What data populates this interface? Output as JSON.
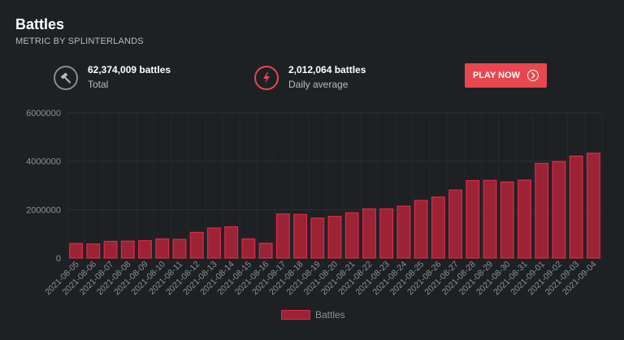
{
  "header": {
    "title": "Battles",
    "subtitle": "METRIC BY SPLINTERLANDS"
  },
  "stats": {
    "total": {
      "value": "62,374,009 battles",
      "label": "Total",
      "icon": "gavel-icon"
    },
    "daily": {
      "value": "2,012,064 battles",
      "label": "Daily average",
      "icon": "lightning-icon"
    }
  },
  "play_button": {
    "label": "PLAY NOW",
    "icon": "chevron-right-circle-icon"
  },
  "colors": {
    "background": "#1e2124",
    "bar_fill": "#9b2335",
    "bar_stroke": "#e0294a",
    "accent": "#e8474f"
  },
  "chart_data": {
    "type": "bar",
    "categories": [
      "2021-08-05",
      "2021-08-06",
      "2021-08-07",
      "2021-08-08",
      "2021-08-09",
      "2021-08-10",
      "2021-08-11",
      "2021-08-12",
      "2021-08-13",
      "2021-08-14",
      "2021-08-15",
      "2021-08-16",
      "2021-08-17",
      "2021-08-18",
      "2021-08-19",
      "2021-08-20",
      "2021-08-21",
      "2021-08-22",
      "2021-08-23",
      "2021-08-24",
      "2021-08-25",
      "2021-08-26",
      "2021-08-27",
      "2021-08-28",
      "2021-08-29",
      "2021-08-30",
      "2021-08-31",
      "2021-09-01",
      "2021-09-02",
      "2021-09-03",
      "2021-09-04"
    ],
    "series": [
      {
        "name": "Battles",
        "values": [
          600000,
          580000,
          690000,
          700000,
          720000,
          790000,
          770000,
          1060000,
          1240000,
          1290000,
          790000,
          610000,
          1820000,
          1800000,
          1650000,
          1720000,
          1870000,
          2030000,
          2030000,
          2140000,
          2380000,
          2520000,
          2810000,
          3200000,
          3210000,
          3140000,
          3220000,
          3910000,
          3990000,
          4210000,
          4330000
        ]
      }
    ],
    "yticks": [
      "0",
      "2000000",
      "4000000",
      "6000000"
    ],
    "ylim": [
      0,
      6000000
    ],
    "grid": true,
    "legend": "bottom",
    "xlabel": "",
    "ylabel": ""
  }
}
